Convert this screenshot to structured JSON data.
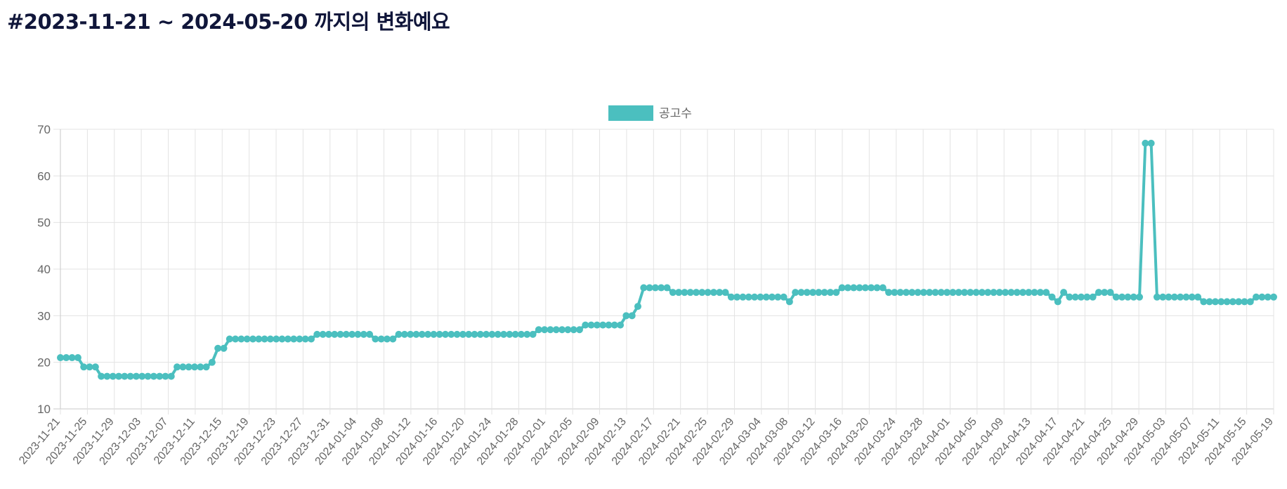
{
  "page": {
    "title": "#2023-11-21 ~ 2024-05-20 까지의 변화예요"
  },
  "chart_data": {
    "type": "line",
    "title": "",
    "xlabel": "",
    "ylabel": "",
    "ylim": [
      10,
      70
    ],
    "yticks": [
      10,
      20,
      30,
      40,
      50,
      60,
      70
    ],
    "grid": true,
    "legend_position": "top-center",
    "x_tick_labels": [
      "2023-11-21",
      "2023-11-25",
      "2023-11-29",
      "2023-12-03",
      "2023-12-07",
      "2023-12-11",
      "2023-12-15",
      "2023-12-19",
      "2023-12-23",
      "2023-12-27",
      "2023-12-31",
      "2024-01-04",
      "2024-01-08",
      "2024-01-12",
      "2024-01-16",
      "2024-01-20",
      "2024-01-24",
      "2024-01-28",
      "2024-02-01",
      "2024-02-05",
      "2024-02-09",
      "2024-02-13",
      "2024-02-17",
      "2024-02-21",
      "2024-02-25",
      "2024-02-29",
      "2024-03-04",
      "2024-03-08",
      "2024-03-12",
      "2024-03-16",
      "2024-03-20",
      "2024-03-24",
      "2024-03-28",
      "2024-04-01",
      "2024-04-05",
      "2024-04-09",
      "2024-04-13",
      "2024-04-17",
      "2024-04-21",
      "2024-04-25",
      "2024-04-29",
      "2024-05-03",
      "2024-05-07",
      "2024-05-11",
      "2024-05-15",
      "2024-05-19"
    ],
    "x_start": "2023-11-21",
    "x_end": "2024-05-19",
    "series": [
      {
        "name": "공고수",
        "color": "#4bbfbf",
        "values": [
          21,
          21,
          21,
          21,
          19,
          19,
          19,
          17,
          17,
          17,
          17,
          17,
          17,
          17,
          17,
          17,
          17,
          17,
          17,
          17,
          19,
          19,
          19,
          19,
          19,
          19,
          20,
          23,
          23,
          25,
          25,
          25,
          25,
          25,
          25,
          25,
          25,
          25,
          25,
          25,
          25,
          25,
          25,
          25,
          26,
          26,
          26,
          26,
          26,
          26,
          26,
          26,
          26,
          26,
          25,
          25,
          25,
          25,
          26,
          26,
          26,
          26,
          26,
          26,
          26,
          26,
          26,
          26,
          26,
          26,
          26,
          26,
          26,
          26,
          26,
          26,
          26,
          26,
          26,
          26,
          26,
          26,
          27,
          27,
          27,
          27,
          27,
          27,
          27,
          27,
          28,
          28,
          28,
          28,
          28,
          28,
          28,
          30,
          30,
          32,
          36,
          36,
          36,
          36,
          36,
          35,
          35,
          35,
          35,
          35,
          35,
          35,
          35,
          35,
          35,
          34,
          34,
          34,
          34,
          34,
          34,
          34,
          34,
          34,
          34,
          33,
          35,
          35,
          35,
          35,
          35,
          35,
          35,
          35,
          36,
          36,
          36,
          36,
          36,
          36,
          36,
          36,
          35,
          35,
          35,
          35,
          35,
          35,
          35,
          35,
          35,
          35,
          35,
          35,
          35,
          35,
          35,
          35,
          35,
          35,
          35,
          35,
          35,
          35,
          35,
          35,
          35,
          35,
          35,
          35,
          34,
          33,
          35,
          34,
          34,
          34,
          34,
          34,
          35,
          35,
          35,
          34,
          34,
          34,
          34,
          34,
          67,
          67,
          34,
          34,
          34,
          34,
          34,
          34,
          34,
          34,
          33,
          33,
          33,
          33,
          33,
          33,
          33,
          33,
          33,
          34,
          34,
          34,
          34
        ]
      }
    ]
  }
}
